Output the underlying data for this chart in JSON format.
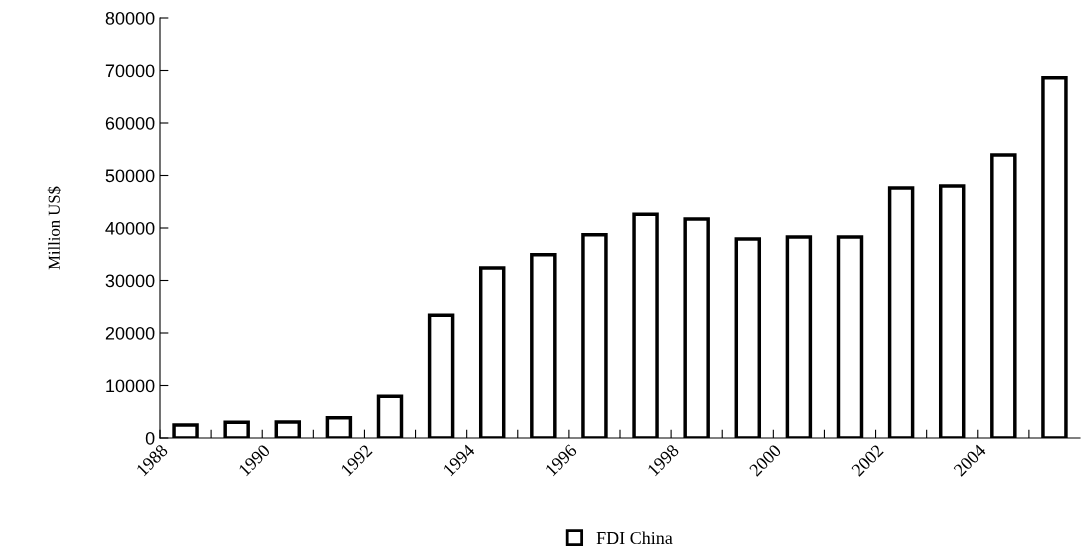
{
  "chart_data": {
    "type": "bar",
    "ylabel": "Million US$",
    "categories": [
      "1988",
      null,
      "1990",
      null,
      "1992",
      null,
      "1994",
      null,
      "1996",
      null,
      "1998",
      null,
      "2000",
      null,
      "2002",
      null,
      "2004",
      null
    ],
    "series": [
      {
        "name": "FDI China",
        "color": "#ffffff",
        "values": [
          2480,
          3000,
          3050,
          3870,
          7940,
          23400,
          32400,
          34900,
          38700,
          42600,
          41700,
          37900,
          38300,
          38300,
          47600,
          48000,
          53900,
          68600
        ]
      }
    ],
    "ylim": [
      0,
      80000
    ],
    "yticks": [
      0,
      10000,
      20000,
      30000,
      40000,
      50000,
      60000,
      70000,
      80000
    ],
    "grid": false,
    "legend": "bottom"
  }
}
